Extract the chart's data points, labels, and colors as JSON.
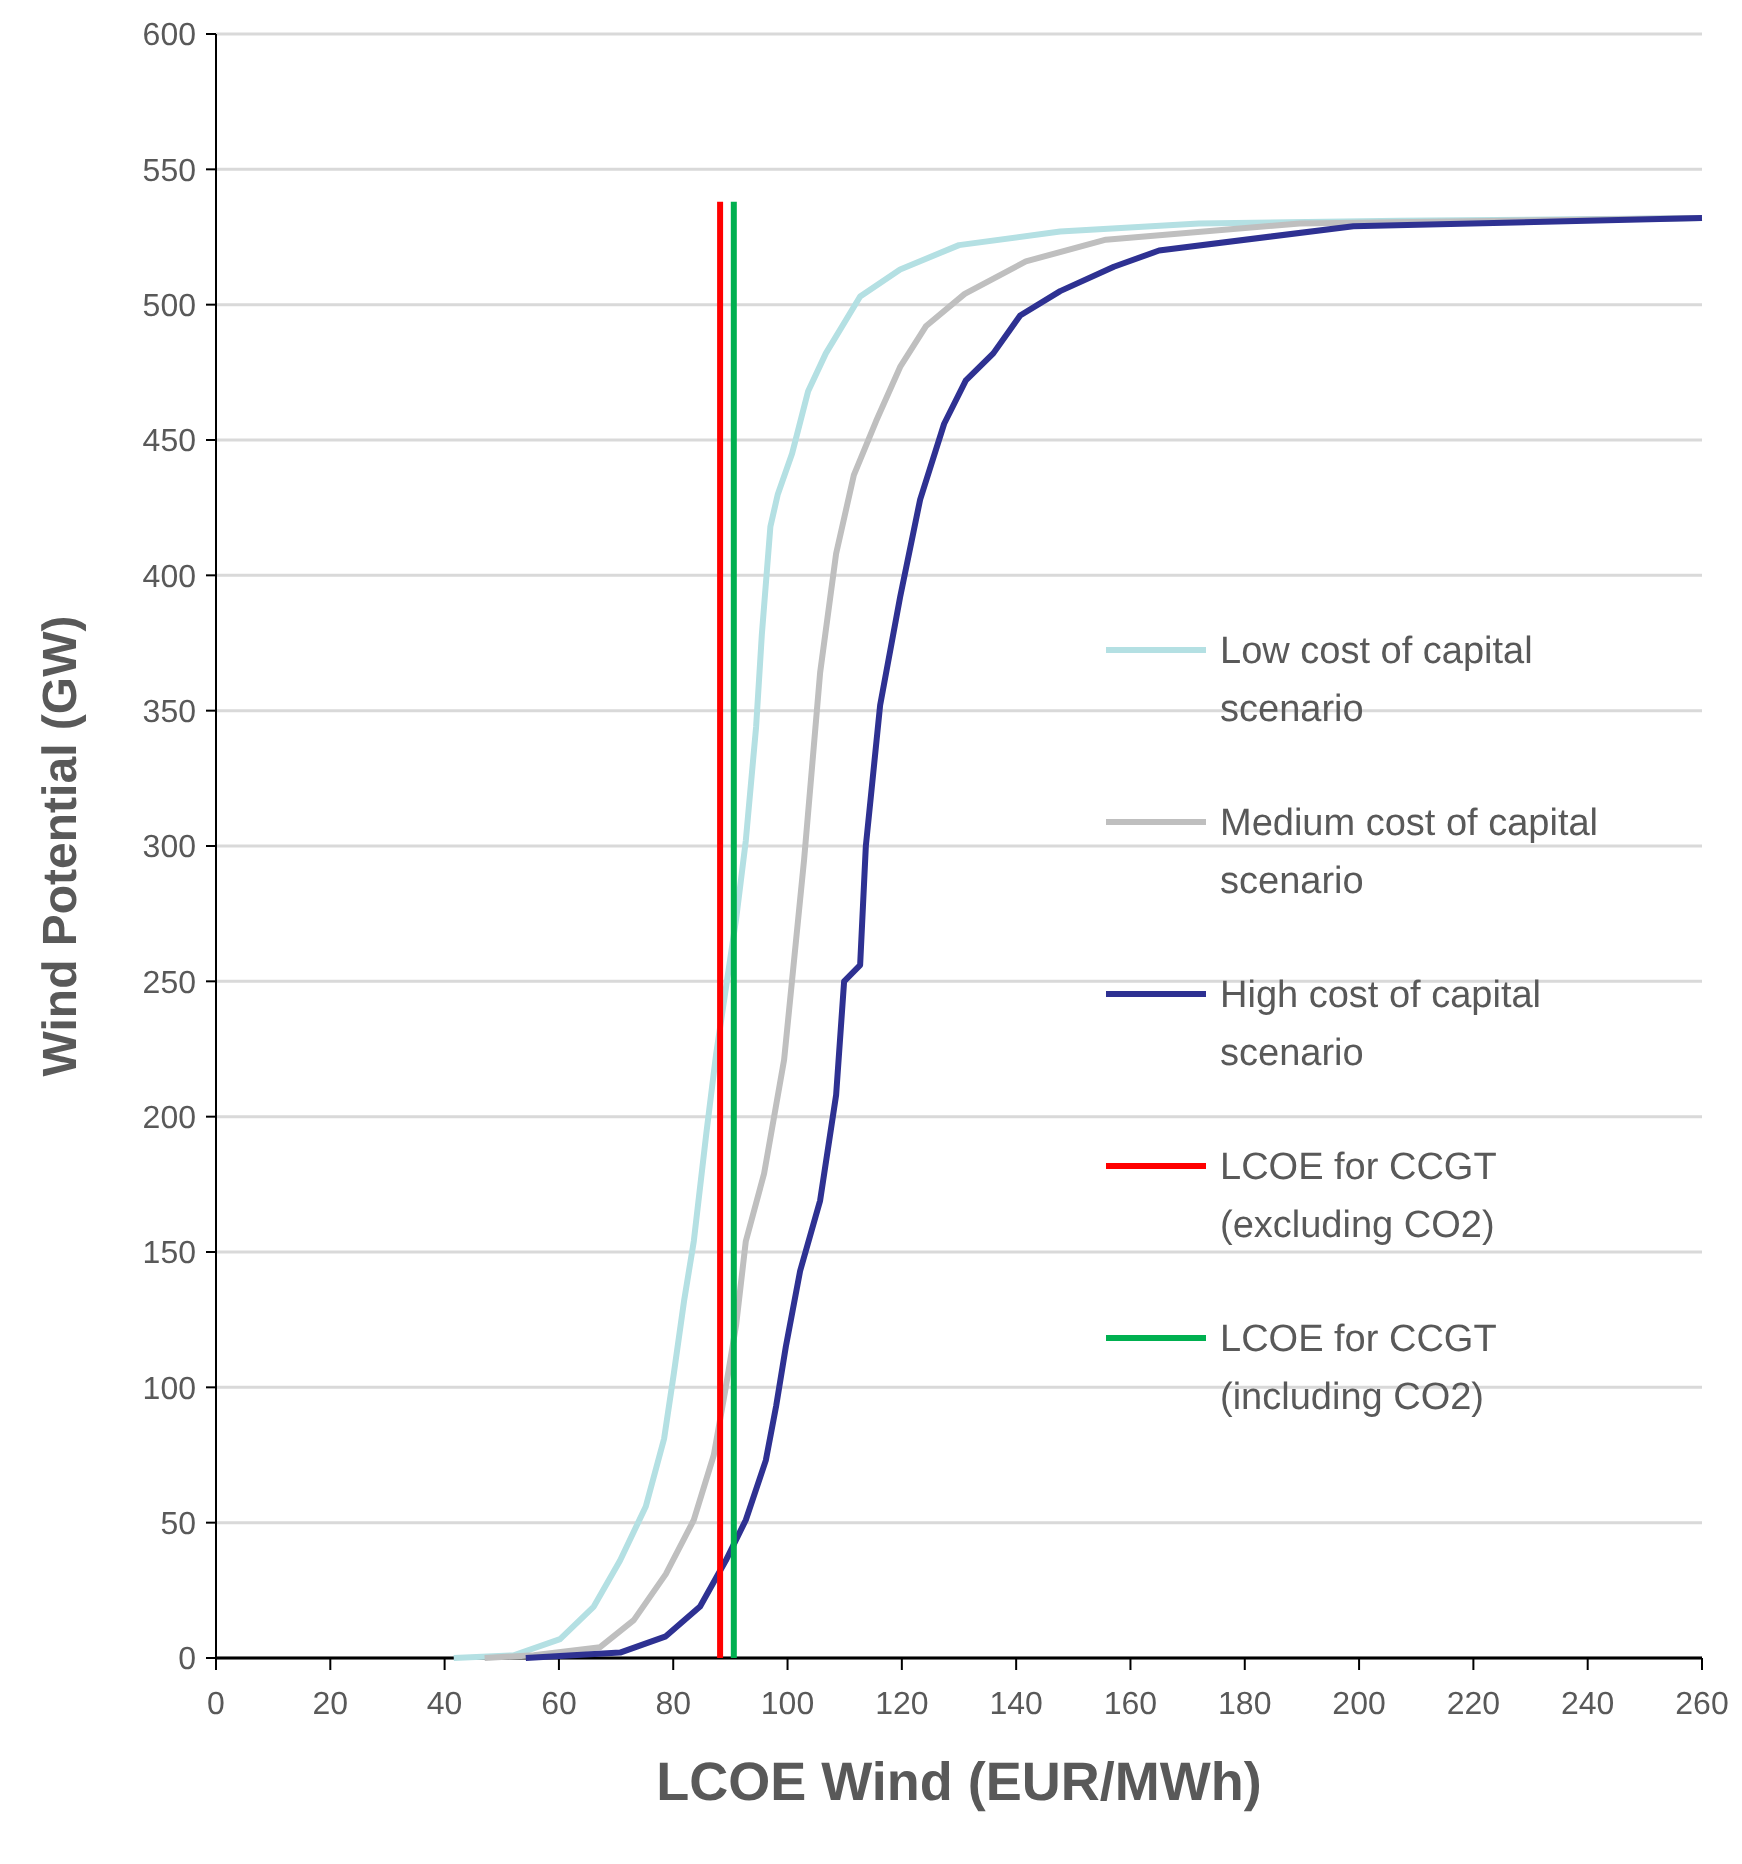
{
  "chart_data": {
    "type": "line",
    "xlabel": "LCOE Wind (EUR/MWh)",
    "ylabel": "Wind Potential (GW)",
    "xlim": [
      0,
      260
    ],
    "ylim": [
      0,
      600
    ],
    "xticks": [
      0,
      20,
      40,
      60,
      80,
      100,
      120,
      140,
      160,
      180,
      200,
      220,
      240,
      260
    ],
    "yticks": [
      0,
      50,
      100,
      150,
      200,
      250,
      300,
      350,
      400,
      450,
      500,
      550,
      600
    ],
    "grid": "y",
    "legend": "right",
    "series": [
      {
        "name": "Low cost of capital scenario",
        "color": "#b4e0e3",
        "x": [
          41.6,
          52.1,
          60.2,
          66.1,
          70.7,
          75.2,
          78.4,
          80.1,
          81.9,
          83.6,
          85.8,
          87.5,
          91,
          92.7,
          94.5,
          95.5,
          97,
          98.3,
          100.8,
          103.6,
          106.7,
          112.7,
          119.7,
          130,
          147.7,
          172,
          207,
          260
        ],
        "values": [
          0,
          1,
          7,
          19,
          36,
          56,
          81,
          105,
          132,
          154,
          194,
          223,
          273,
          302,
          344,
          378,
          418,
          430,
          445,
          468,
          482,
          503,
          513,
          522,
          527,
          530,
          531,
          532
        ]
      },
      {
        "name": "Medium cost of capital scenario",
        "color": "#bfbfbf",
        "x": [
          47,
          55.6,
          67.2,
          73.1,
          78.7,
          83.6,
          87.1,
          89.2,
          91,
          92.7,
          95.9,
          99.4,
          102.9,
          105.7,
          108.5,
          111.6,
          115.5,
          119.7,
          124.2,
          131,
          141.7,
          155.7,
          189.6,
          260
        ],
        "values": [
          0,
          1,
          4,
          14,
          31,
          51,
          75,
          100,
          123,
          154,
          179,
          221,
          295,
          364,
          408,
          437,
          457,
          477,
          492,
          504,
          516,
          524,
          530,
          532
        ]
      },
      {
        "name": "High cost of capital scenario",
        "color": "#2e3192",
        "x": [
          54.2,
          70.7,
          78.7,
          84.7,
          89.2,
          92.7,
          96.2,
          98,
          99.7,
          102.2,
          105.7,
          108.5,
          109.9,
          112.7,
          113.7,
          116.2,
          119.7,
          123.2,
          127.4,
          131.2,
          136,
          140.7,
          147.7,
          157.1,
          165,
          199,
          260
        ],
        "values": [
          0,
          2,
          8,
          19,
          36,
          51,
          73,
          93,
          115,
          143,
          169,
          208,
          250,
          256,
          300,
          352,
          392,
          428,
          456,
          472,
          482,
          496,
          505,
          514,
          520,
          529,
          532
        ]
      },
      {
        "name": "LCOE for CCGT (excluding CO2)",
        "color": "#ff0000",
        "x": [
          88.2,
          88.2
        ],
        "values": [
          0,
          538
        ]
      },
      {
        "name": "LCOE for CCGT (including CO2)",
        "color": "#00b050",
        "x": [
          90.6,
          90.6
        ],
        "values": [
          0,
          538
        ]
      }
    ]
  }
}
